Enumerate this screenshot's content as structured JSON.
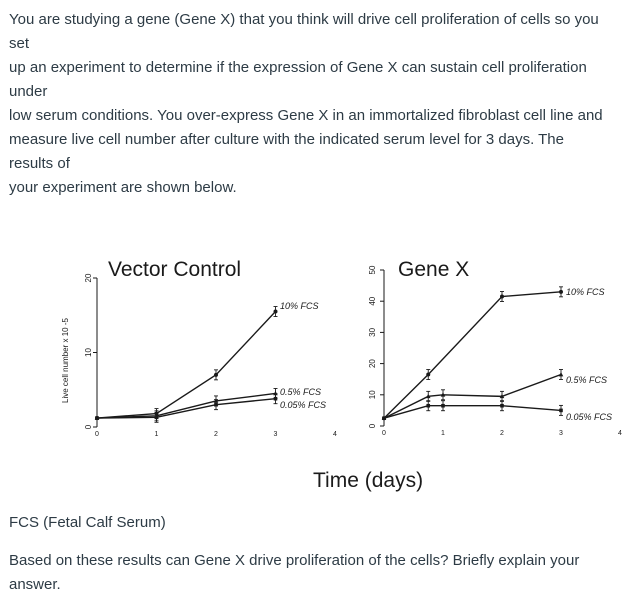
{
  "intro_lines": [
    "You are studying a gene (Gene X) that you think will drive cell proliferation of cells so you",
    "set",
    "up an experiment to determine if the expression of Gene X can sustain cell proliferation",
    "under",
    "low serum conditions. You over-express Gene X in an immortalized fibroblast cell line and",
    "measure live cell number after culture with the indicated serum level for 3 days. The",
    "results of",
    "your experiment are shown below."
  ],
  "shared_xlabel": "Time (days)",
  "shared_ylabel": "Live cell number x 10 -5",
  "fcs_note": "FCS (Fetal Calf Serum)",
  "question_lines": [
    "Based on these results can Gene X drive proliferation of the cells? Briefly explain your",
    "answer."
  ],
  "chart_data": [
    {
      "type": "line",
      "title": "Vector Control",
      "ylabel": "Live cell number x 10 -5",
      "xlabel": "Time (days)",
      "x": [
        0,
        1,
        2,
        3
      ],
      "xticks": [
        "0",
        "1",
        "2",
        "3",
        "4"
      ],
      "xlim": [
        0,
        4
      ],
      "yticks": [
        "0",
        "10",
        "20"
      ],
      "ylim": [
        0,
        20
      ],
      "grid": false,
      "series": [
        {
          "name": "10% FCS",
          "values": [
            1.2,
            1.8,
            7.0,
            15.5
          ]
        },
        {
          "name": "0.5% FCS",
          "values": [
            1.2,
            1.5,
            3.5,
            4.5
          ]
        },
        {
          "name": "0.05% FCS",
          "values": [
            1.2,
            1.3,
            3.0,
            3.8
          ]
        }
      ]
    },
    {
      "type": "line",
      "title": "Gene X",
      "xlabel": "Time (days)",
      "x": [
        0,
        0.75,
        1,
        2,
        3
      ],
      "xticks": [
        "0",
        "1",
        "2",
        "3",
        "4"
      ],
      "xlim": [
        0,
        4
      ],
      "yticks": [
        "0",
        "10",
        "20",
        "30",
        "40",
        "50"
      ],
      "ylim": [
        0,
        50
      ],
      "grid": false,
      "series": [
        {
          "name": "10% FCS",
          "values": [
            2.5,
            16.5,
            null,
            41.5,
            43.0
          ]
        },
        {
          "name": "0.5% FCS",
          "values": [
            2.5,
            9.5,
            10.0,
            9.5,
            16.5
          ]
        },
        {
          "name": "0.05% FCS",
          "values": [
            2.5,
            6.5,
            6.5,
            6.5,
            5.0
          ]
        }
      ]
    }
  ]
}
